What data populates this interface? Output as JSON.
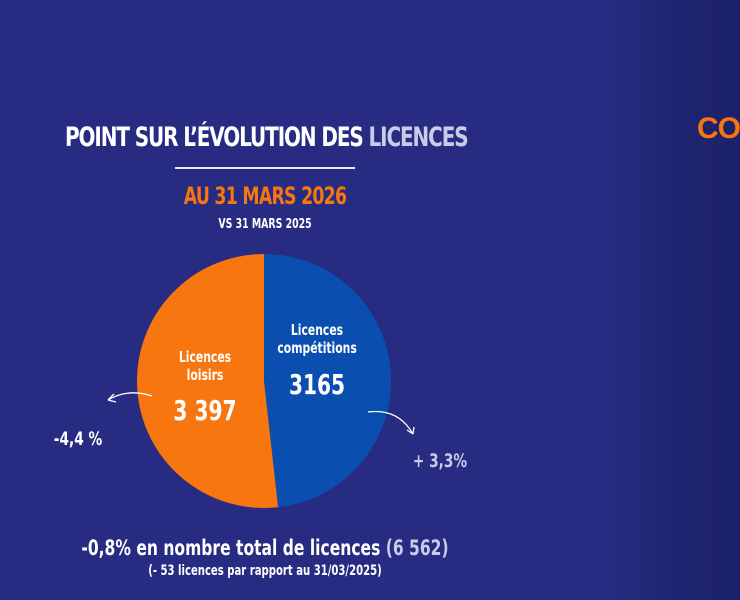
{
  "header": {
    "title_main": "POINT SUR L’ÉVOLUTION DES ",
    "title_fade": "LICENCES",
    "date": "AU 31 MARS 2026",
    "compare": "VS 31 MARS 2025"
  },
  "side_text": "CO",
  "chart_data": {
    "type": "pie",
    "title": "POINT SUR L’ÉVOLUTION DES LICENCES",
    "slices": [
      {
        "label_line1": "Licences",
        "label_line2": "compétitions",
        "value": 3165,
        "value_label": "3165",
        "change": "+ 3,3%",
        "color": "#0a4fb0"
      },
      {
        "label_line1": "Licences",
        "label_line2": "loisirs",
        "value": 3397,
        "value_label": "3 397",
        "change": "-4,4 %",
        "color": "#f7760f"
      }
    ]
  },
  "footer": {
    "total_main": "-0,8% en nombre total de licences ",
    "total_value": "(6 562)",
    "detail": "(- 53 licences par rapport au 31/03/2025)"
  }
}
